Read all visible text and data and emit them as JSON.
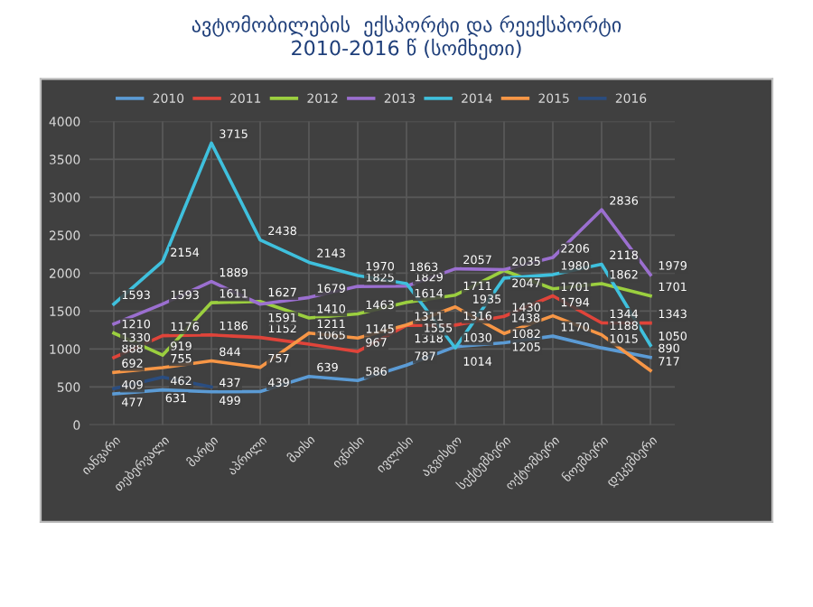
{
  "chart_data": {
    "type": "line",
    "title": "ავტომობილების  ექსპორტი და რეექსპორტი\n2010-2016 წ (სომხეთი)",
    "categories": [
      "იანვარი",
      "თებერვალი",
      "მარტი",
      "აპრილი",
      "მაისი",
      "ივნისი",
      "ივლისი",
      "აგვისტო",
      "სექტემბერი",
      "ოქტომბერი",
      "ნოემბერი",
      "დეკემბერი"
    ],
    "series": [
      {
        "name": "2010",
        "color": "#5b9bd5",
        "values": [
          409,
          462,
          437,
          439,
          639,
          586,
          787,
          1030,
          1082,
          1170,
          1015,
          890
        ]
      },
      {
        "name": "2011",
        "color": "#e0443a",
        "values": [
          888,
          1176,
          1186,
          1152,
          1065,
          967,
          1311,
          1316,
          1430,
          1701,
          1344,
          1343
        ]
      },
      {
        "name": "2012",
        "color": "#9bcf3f",
        "values": [
          1210,
          919,
          1611,
          1627,
          1410,
          1463,
          1614,
          1711,
          2035,
          1794,
          1862,
          1701
        ]
      },
      {
        "name": "2013",
        "color": "#9b6fd0",
        "values": [
          1330,
          1593,
          1889,
          1591,
          1679,
          1825,
          1829,
          2057,
          2047,
          2206,
          2836,
          1979
        ]
      },
      {
        "name": "2014",
        "color": "#3fc0dd",
        "values": [
          1593,
          2154,
          3715,
          2438,
          2143,
          1970,
          1863,
          1014,
          1935,
          1980,
          2118,
          1050
        ]
      },
      {
        "name": "2015",
        "color": "#f79646",
        "values": [
          692,
          755,
          844,
          757,
          1211,
          1145,
          1318,
          1555,
          1205,
          1438,
          1188,
          717
        ]
      },
      {
        "name": "2016",
        "color": "#2a4d80",
        "values": [
          477,
          631,
          499,
          null,
          null,
          null,
          null,
          null,
          null,
          null,
          null,
          null
        ]
      }
    ],
    "ylim": [
      0,
      4000
    ],
    "yticks": [
      0,
      500,
      1000,
      1500,
      2000,
      2500,
      3000,
      3500,
      4000
    ],
    "grid": true,
    "legend": "top",
    "data_labels": true,
    "marker": "none",
    "line_style": "solid"
  }
}
